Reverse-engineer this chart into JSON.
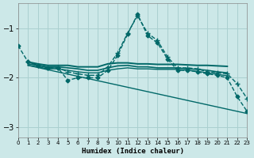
{
  "xlabel": "Humidex (Indice chaleur)",
  "bg_color": "#cce8e8",
  "grid_color": "#aad0d0",
  "line_color": "#006868",
  "xlim": [
    0,
    23
  ],
  "ylim": [
    -3.2,
    -0.5
  ],
  "yticks": [
    -3,
    -2,
    -1
  ],
  "xticks": [
    0,
    1,
    2,
    3,
    4,
    5,
    6,
    7,
    8,
    9,
    10,
    11,
    12,
    13,
    14,
    15,
    16,
    17,
    18,
    19,
    20,
    21,
    22,
    23
  ],
  "series": [
    {
      "x": [
        0,
        1,
        2,
        3,
        4,
        5,
        6,
        7,
        8,
        9,
        10,
        11,
        12,
        13,
        14,
        15,
        16,
        17,
        18,
        19,
        20,
        21,
        22,
        23
      ],
      "y": [
        -1.35,
        -1.68,
        -1.75,
        -1.8,
        -1.8,
        -2.05,
        -2.0,
        -2.0,
        -2.0,
        -1.85,
        -1.55,
        -1.12,
        -0.72,
        -1.15,
        -1.3,
        -1.62,
        -1.85,
        -1.85,
        -1.88,
        -1.92,
        -1.95,
        -2.0,
        -2.38,
        -2.68
      ],
      "marker": "D",
      "markersize": 2.5,
      "linewidth": 1.0,
      "linestyle": "--",
      "zorder": 5
    },
    {
      "x": [
        1,
        2,
        3,
        4,
        5,
        6,
        7,
        8,
        9,
        10,
        11,
        12,
        13,
        14,
        15,
        16,
        17,
        18,
        19,
        20,
        21,
        22,
        23
      ],
      "y": [
        -1.68,
        -1.75,
        -1.8,
        -1.8,
        -1.88,
        -1.92,
        -1.95,
        -1.95,
        -1.78,
        -1.5,
        -1.1,
        -0.75,
        -1.1,
        -1.25,
        -1.58,
        -1.8,
        -1.8,
        -1.82,
        -1.88,
        -1.9,
        -1.92,
        -2.12,
        -2.42
      ],
      "marker": "+",
      "markersize": 4,
      "linewidth": 1.0,
      "linestyle": "--",
      "zorder": 4
    },
    {
      "x": [
        1,
        2,
        3,
        4,
        5,
        6,
        7,
        8,
        9,
        10,
        11,
        12,
        13,
        14,
        15,
        16,
        17,
        18,
        19,
        20,
        21
      ],
      "y": [
        -1.68,
        -1.72,
        -1.75,
        -1.75,
        -1.75,
        -1.78,
        -1.78,
        -1.78,
        -1.72,
        -1.7,
        -1.7,
        -1.72,
        -1.72,
        -1.73,
        -1.73,
        -1.73,
        -1.74,
        -1.75,
        -1.75,
        -1.76,
        -1.77
      ],
      "marker": null,
      "markersize": 0,
      "linewidth": 1.4,
      "linestyle": "-",
      "zorder": 3
    },
    {
      "x": [
        1,
        2,
        3,
        4,
        5,
        6,
        7,
        8,
        9,
        10,
        11,
        12,
        13,
        14,
        15,
        16,
        17,
        18,
        19,
        20,
        21
      ],
      "y": [
        -1.72,
        -1.75,
        -1.78,
        -1.78,
        -1.8,
        -1.82,
        -1.85,
        -1.85,
        -1.8,
        -1.76,
        -1.75,
        -1.78,
        -1.78,
        -1.8,
        -1.8,
        -1.8,
        -1.82,
        -1.83,
        -1.85,
        -1.88,
        -1.9
      ],
      "marker": null,
      "markersize": 0,
      "linewidth": 1.2,
      "linestyle": "-",
      "zorder": 3
    },
    {
      "x": [
        1,
        2,
        3,
        4,
        5,
        6,
        7,
        8,
        9,
        10,
        11,
        12,
        13,
        14,
        15,
        16,
        17,
        18,
        19,
        20,
        21
      ],
      "y": [
        -1.75,
        -1.78,
        -1.82,
        -1.82,
        -1.85,
        -1.88,
        -1.9,
        -1.9,
        -1.85,
        -1.82,
        -1.8,
        -1.82,
        -1.82,
        -1.83,
        -1.83,
        -1.83,
        -1.85,
        -1.87,
        -1.9,
        -1.93,
        -1.96
      ],
      "marker": null,
      "markersize": 0,
      "linewidth": 1.0,
      "linestyle": "-",
      "zorder": 3
    },
    {
      "x": [
        1,
        23
      ],
      "y": [
        -1.75,
        -2.72
      ],
      "marker": null,
      "markersize": 0,
      "linewidth": 1.0,
      "linestyle": "-",
      "zorder": 2
    }
  ]
}
